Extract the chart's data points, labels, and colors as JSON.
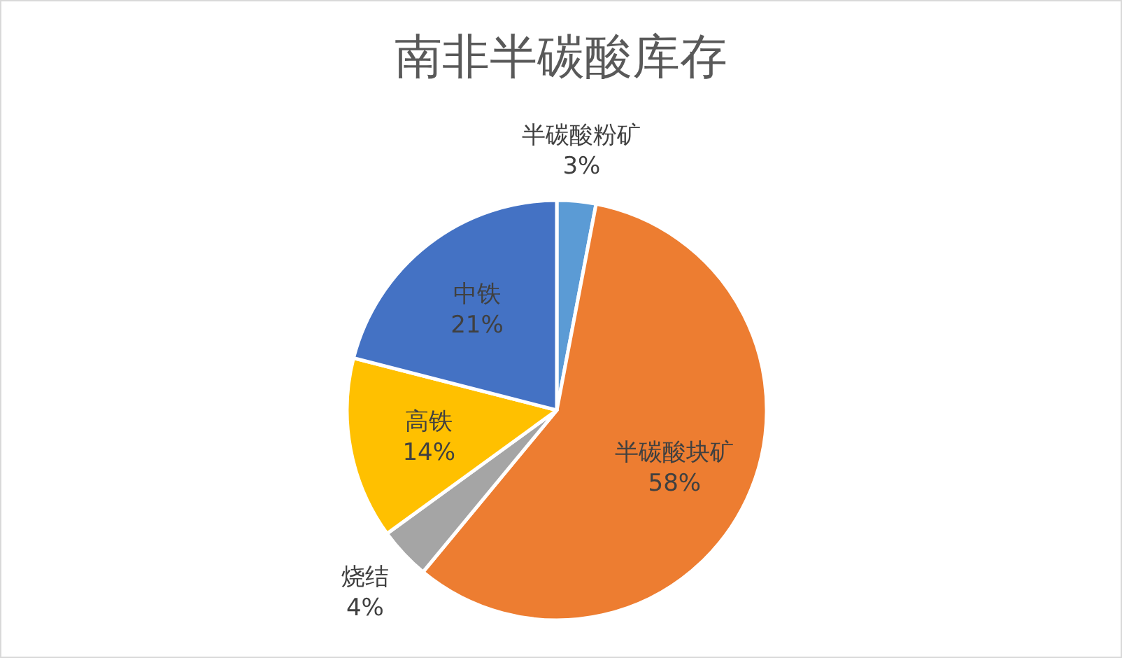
{
  "chart_data": {
    "type": "pie",
    "title": "南非半碳酸库存",
    "categories": [
      "半碳酸粉矿",
      "半碳酸块矿",
      "烧结",
      "高铁",
      "中铁"
    ],
    "values": [
      3,
      58,
      4,
      14,
      21
    ],
    "colors": [
      "#5b9bd5",
      "#ed7d31",
      "#a5a5a5",
      "#ffc000",
      "#4472c4"
    ],
    "value_labels": [
      "3%",
      "58%",
      "4%",
      "14%",
      "21%"
    ]
  }
}
